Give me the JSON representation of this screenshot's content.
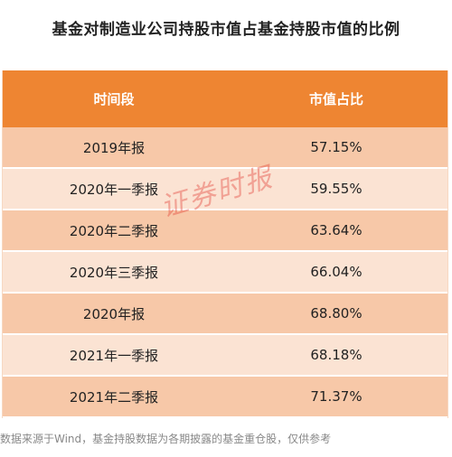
{
  "title": "基金对制造业公司持股市值占基金持股市值的比例",
  "table": {
    "headers": [
      "时间段",
      "市值占比"
    ],
    "rows": [
      [
        "2019年报",
        "57.15%"
      ],
      [
        "2020年一季报",
        "59.55%"
      ],
      [
        "2020年二季报",
        "63.64%"
      ],
      [
        "2020年三季报",
        "66.04%"
      ],
      [
        "2020年报",
        "68.80%"
      ],
      [
        "2021年一季报",
        "68.18%"
      ],
      [
        "2021年二季报",
        "71.37%"
      ]
    ]
  },
  "watermark": "证券时报",
  "footnote": "数据来源于Wind，基金持股数据为各期披露的基金重仓股，仅供参考",
  "colors": {
    "header_bg": "#ee8532",
    "row_dark": "#f7c8a8",
    "row_light": "#fbe3d3"
  }
}
